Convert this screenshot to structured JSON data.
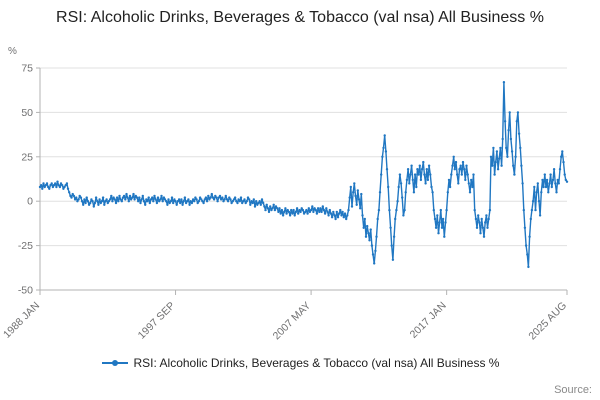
{
  "chart": {
    "title": "RSI: Alcoholic Drinks, Beverages & Tobacco (val nsa) All Business %",
    "source_label": "Source:"
  },
  "chart_data": {
    "type": "line",
    "title": "RSI: Alcoholic Drinks, Beverages & Tobacco (val nsa) All Business %",
    "xlabel": "",
    "ylabel": "%",
    "ylim": [
      -50,
      75
    ],
    "yticks": [
      75,
      50,
      25,
      0,
      -25,
      -50
    ],
    "x_start": "1988 JAN",
    "x_end": "2025 AUG",
    "frequency": "monthly",
    "x_tick_labels": [
      "1988 JAN",
      "1997 SEP",
      "2007 MAY",
      "2017 JAN",
      "2025 AUG"
    ],
    "x_tick_indices": [
      0,
      116,
      232,
      348,
      451
    ],
    "grid": "horizontal",
    "legend_position": "bottom",
    "axis_color": "#b3b3b3",
    "grid_color": "#e0e0e0",
    "tick_label_color": "#707071",
    "series": [
      {
        "name": "RSI: Alcoholic Drinks, Beverages & Tobacco (val nsa) All Business %",
        "color": "#2077c2",
        "values": [
          8,
          9,
          7,
          10,
          8,
          9,
          10,
          8,
          7,
          9,
          10,
          8,
          9,
          10,
          8,
          11,
          9,
          8,
          10,
          9,
          7,
          8,
          9,
          10,
          7,
          5,
          3,
          2,
          4,
          3,
          1,
          2,
          0,
          1,
          3,
          2,
          0,
          -2,
          1,
          -1,
          2,
          0,
          -2,
          -1,
          1,
          0,
          -3,
          -1,
          2,
          0,
          -2,
          1,
          -1,
          0,
          2,
          -2,
          0,
          1,
          -1,
          0,
          1,
          3,
          0,
          2,
          1,
          -1,
          2,
          0,
          3,
          1,
          0,
          2,
          3,
          1,
          4,
          2,
          0,
          3,
          1,
          2,
          4,
          1,
          3,
          2,
          0,
          2,
          -1,
          1,
          3,
          0,
          -2,
          1,
          0,
          2,
          -1,
          1,
          2,
          0,
          3,
          1,
          -1,
          2,
          0,
          1,
          3,
          0,
          2,
          1,
          0,
          -2,
          1,
          -1,
          0,
          2,
          -1,
          1,
          0,
          -2,
          0,
          1,
          -1,
          1,
          -2,
          0,
          2,
          -1,
          0,
          1,
          -2,
          0,
          -1,
          1,
          0,
          2,
          1,
          -1,
          0,
          2,
          1,
          0,
          -1,
          1,
          2,
          0,
          3,
          1,
          2,
          4,
          2,
          1,
          3,
          2,
          0,
          2,
          3,
          1,
          2,
          0,
          1,
          3,
          1,
          0,
          2,
          1,
          -1,
          0,
          1,
          2,
          0,
          -1,
          1,
          0,
          2,
          -1,
          0,
          1,
          -1,
          0,
          2,
          1,
          -2,
          0,
          -1,
          1,
          -3,
          0,
          -2,
          -1,
          0,
          -2,
          1,
          -1,
          -3,
          -5,
          -2,
          -4,
          -6,
          -3,
          -5,
          -4,
          -2,
          -5,
          -3,
          -4,
          -6,
          -4,
          -7,
          -5,
          -8,
          -6,
          -4,
          -7,
          -5,
          -6,
          -8,
          -5,
          -7,
          -5,
          -8,
          -6,
          -4,
          -7,
          -5,
          -6,
          -4,
          -5,
          -7,
          -6,
          -5,
          -7,
          -4,
          -6,
          -5,
          -3,
          -6,
          -4,
          -5,
          -7,
          -4,
          -6,
          -4,
          -6,
          -3,
          -5,
          -7,
          -4,
          -6,
          -8,
          -5,
          -7,
          -9,
          -6,
          -8,
          -10,
          -6,
          -9,
          -7,
          -5,
          -8,
          -6,
          -9,
          -7,
          -10,
          -8,
          -5,
          2,
          8,
          -3,
          5,
          10,
          3,
          -2,
          6,
          1,
          -4,
          4,
          -8,
          -15,
          -10,
          -20,
          -14,
          -18,
          -22,
          -16,
          -25,
          -30,
          -35,
          -28,
          -20,
          -10,
          -5,
          5,
          15,
          25,
          30,
          37,
          28,
          18,
          8,
          -5,
          -15,
          -25,
          -33,
          -20,
          -10,
          -5,
          0,
          8,
          15,
          10,
          2,
          -8,
          -5,
          5,
          12,
          18,
          10,
          15,
          20,
          12,
          5,
          15,
          8,
          18,
          15,
          20,
          12,
          18,
          22,
          15,
          10,
          18,
          12,
          20,
          15,
          8,
          5,
          -5,
          -10,
          -15,
          -8,
          -18,
          -12,
          -5,
          -15,
          -10,
          -20,
          -12,
          -5,
          5,
          12,
          8,
          15,
          20,
          25,
          18,
          22,
          15,
          10,
          18,
          20,
          15,
          22,
          18,
          12,
          20,
          15,
          10,
          5,
          12,
          8,
          15,
          -5,
          -10,
          -15,
          -8,
          -12,
          -18,
          -10,
          -15,
          -20,
          -12,
          -8,
          -15,
          -10,
          -5,
          25,
          20,
          30,
          15,
          22,
          28,
          18,
          24,
          30,
          20,
          35,
          67,
          45,
          30,
          25,
          40,
          50,
          35,
          28,
          20,
          15,
          25,
          45,
          50,
          38,
          30,
          20,
          10,
          -5,
          -15,
          -25,
          -30,
          -37,
          -20,
          -10,
          -5,
          0,
          8,
          -5,
          5,
          10,
          0,
          -8,
          5,
          12,
          8,
          15,
          8,
          12,
          5,
          10,
          15,
          8,
          12,
          18,
          10,
          5,
          12,
          10,
          18,
          25,
          28,
          22,
          15,
          12,
          11
        ]
      }
    ]
  }
}
